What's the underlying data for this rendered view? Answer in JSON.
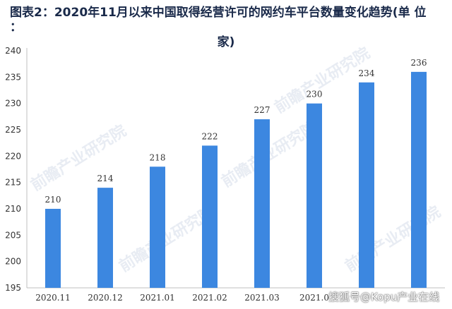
{
  "title_line1": "图表2：2020年11月以来中国取得经营许可的网约车平台数量变化趋势(单 位 ：",
  "title_line2": "家)",
  "watermark": "前瞻产业研究院",
  "footer_watermark": "搜狐号@Kopu产业在线",
  "colors": {
    "bar": "#3c87e0",
    "axis": "#bfbfbf",
    "text": "#333333"
  },
  "chart_data": {
    "type": "bar",
    "categories": [
      "2020.11",
      "2020.12",
      "2021.01",
      "2021.02",
      "2021.03",
      "2021.0",
      "",
      ""
    ],
    "values": [
      210,
      214,
      218,
      222,
      227,
      230,
      234,
      236
    ],
    "data_labels": [
      "210",
      "214",
      "218",
      "222",
      "227",
      "230",
      "234",
      "236"
    ],
    "ylim": [
      195,
      240
    ],
    "yticks": [
      195,
      200,
      205,
      210,
      215,
      220,
      225,
      230,
      235,
      240
    ],
    "xlabel": "",
    "ylabel": "",
    "grid": false
  }
}
